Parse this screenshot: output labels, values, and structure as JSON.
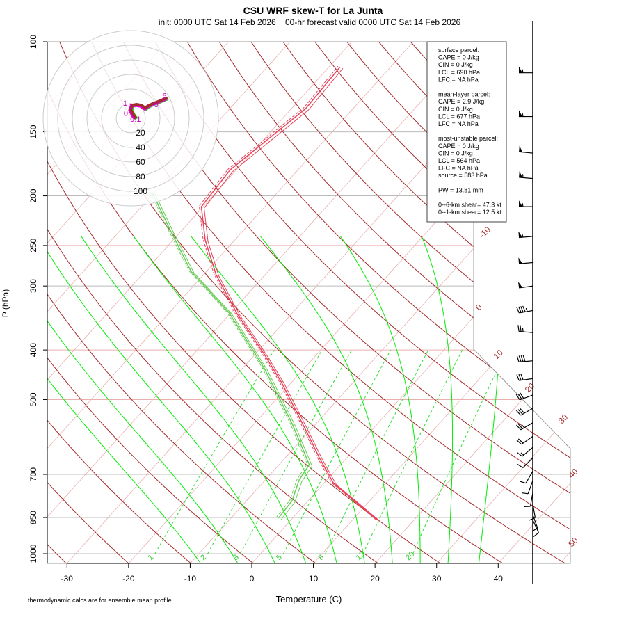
{
  "chart_data": {
    "type": "skew-t",
    "title": "CSU WRF skew-T for La Junta",
    "subtitle": "init: 0000 UTC Sat 14 Feb 2026    00-hr forecast valid 0000 UTC Sat 14 Feb 2026",
    "xlabel": "Temperature (C)",
    "ylabel": "P (hPa)",
    "footnote": "thermodynamic calcs are for ensemble mean profile",
    "xlim": [
      -33,
      45
    ],
    "ylim": [
      1050,
      100
    ],
    "y_scale": "log",
    "x_ticks": [
      -30,
      -20,
      -10,
      0,
      10,
      20,
      30,
      40
    ],
    "y_ticks": [
      100,
      150,
      200,
      250,
      300,
      400,
      500,
      700,
      850,
      1000
    ],
    "isotherm_labels": [
      -10,
      0,
      10,
      20,
      30,
      40,
      50
    ],
    "mixing_ratio_labels": [
      1,
      2,
      3,
      5,
      8,
      12,
      20
    ],
    "colors": {
      "temperature": "#e8425a",
      "dewpoint": "#66cc55",
      "dry_adiabat": "#a52a2a",
      "moist_adiabat": "#00ee00",
      "mixing_ratio": "#33dd33",
      "isotherm": "#e8b0b0",
      "barb": "#000000"
    },
    "temperature": {
      "p": [
        860,
        729,
        653,
        576,
        463,
        408,
        339,
        285,
        244,
        210,
        178,
        135,
        112
      ],
      "T": [
        14.1,
        1.6,
        -4.2,
        -10.5,
        -21.6,
        -28.5,
        -39,
        -48,
        -54.8,
        -60.3,
        -61,
        -57.7,
        -58.2
      ]
    },
    "dewpoint": {
      "p": [
        852,
        789,
        718,
        670,
        558,
        435,
        339,
        281,
        233,
        196
      ],
      "T": [
        -2.3,
        -2.6,
        -4.5,
        -5.1,
        -13.8,
        -26.4,
        -40.2,
        -52.5,
        -62,
        -70.6
      ]
    },
    "winds": [
      {
        "p": 115,
        "dir": 270,
        "spd": 55
      },
      {
        "p": 140,
        "dir": 270,
        "spd": 55
      },
      {
        "p": 165,
        "dir": 275,
        "spd": 50
      },
      {
        "p": 185,
        "dir": 275,
        "spd": 55
      },
      {
        "p": 210,
        "dir": 270,
        "spd": 55
      },
      {
        "p": 240,
        "dir": 265,
        "spd": 55
      },
      {
        "p": 270,
        "dir": 265,
        "spd": 50
      },
      {
        "p": 300,
        "dir": 262,
        "spd": 50
      },
      {
        "p": 335,
        "dir": 260,
        "spd": 45
      },
      {
        "p": 370,
        "dir": 275,
        "spd": 25
      },
      {
        "p": 420,
        "dir": 265,
        "spd": 40
      },
      {
        "p": 455,
        "dir": 262,
        "spd": 30
      },
      {
        "p": 490,
        "dir": 250,
        "spd": 30
      },
      {
        "p": 520,
        "dir": 240,
        "spd": 30
      },
      {
        "p": 555,
        "dir": 240,
        "spd": 25
      },
      {
        "p": 590,
        "dir": 235,
        "spd": 20
      },
      {
        "p": 620,
        "dir": 230,
        "spd": 15
      },
      {
        "p": 650,
        "dir": 225,
        "spd": 10
      },
      {
        "p": 690,
        "dir": 210,
        "spd": 10
      },
      {
        "p": 720,
        "dir": 200,
        "spd": 10
      },
      {
        "p": 760,
        "dir": 190,
        "spd": 10
      },
      {
        "p": 800,
        "dir": 170,
        "spd": 10
      },
      {
        "p": 840,
        "dir": 160,
        "spd": 12
      },
      {
        "p": 860,
        "dir": 155,
        "spd": 12
      }
    ],
    "hodograph": {
      "ring_labels": [
        20,
        40,
        60,
        80,
        100
      ],
      "u": [
        7,
        3,
        0,
        2,
        8,
        14,
        20,
        24,
        30,
        38,
        45,
        50
      ],
      "v": [
        0,
        6,
        12,
        18,
        19,
        18,
        14,
        17,
        20,
        23,
        26,
        28
      ],
      "height_labels": [
        {
          "text": "0.1",
          "u": 3,
          "v": -1
        },
        {
          "text": "0",
          "u": -2,
          "v": 7
        },
        {
          "text": "1",
          "u": -3,
          "v": 17
        },
        {
          "text": "1",
          "u": 1,
          "v": 17
        },
        {
          "text": "5",
          "u": 36,
          "v": 19
        },
        {
          "text": "6",
          "u": 47,
          "v": 31
        }
      ]
    }
  },
  "stats_box": {
    "lines": [
      "surface parcel:",
      "CAPE = 0 J/kg",
      "CIN = 0 J/kg",
      "LCL = 690 hPa",
      "LFC = NA hPa",
      "",
      "mean-layer parcel:",
      "CAPE = 2.9 J/kg",
      "CIN = 0 J/kg",
      "LCL = 677 hPa",
      "LFC = NA hPa",
      "",
      "most-unstable parcel:",
      "CAPE = 0 J/kg",
      "CIN = 0 J/kg",
      "LCL = 564 hPa",
      "LFC = NA hPa",
      "source = 583 hPa",
      "",
      "PW =  13.81 mm",
      "",
      "0--6-km shear= 47.3 kt",
      "0--1-km shear= 12.5 kt"
    ]
  }
}
